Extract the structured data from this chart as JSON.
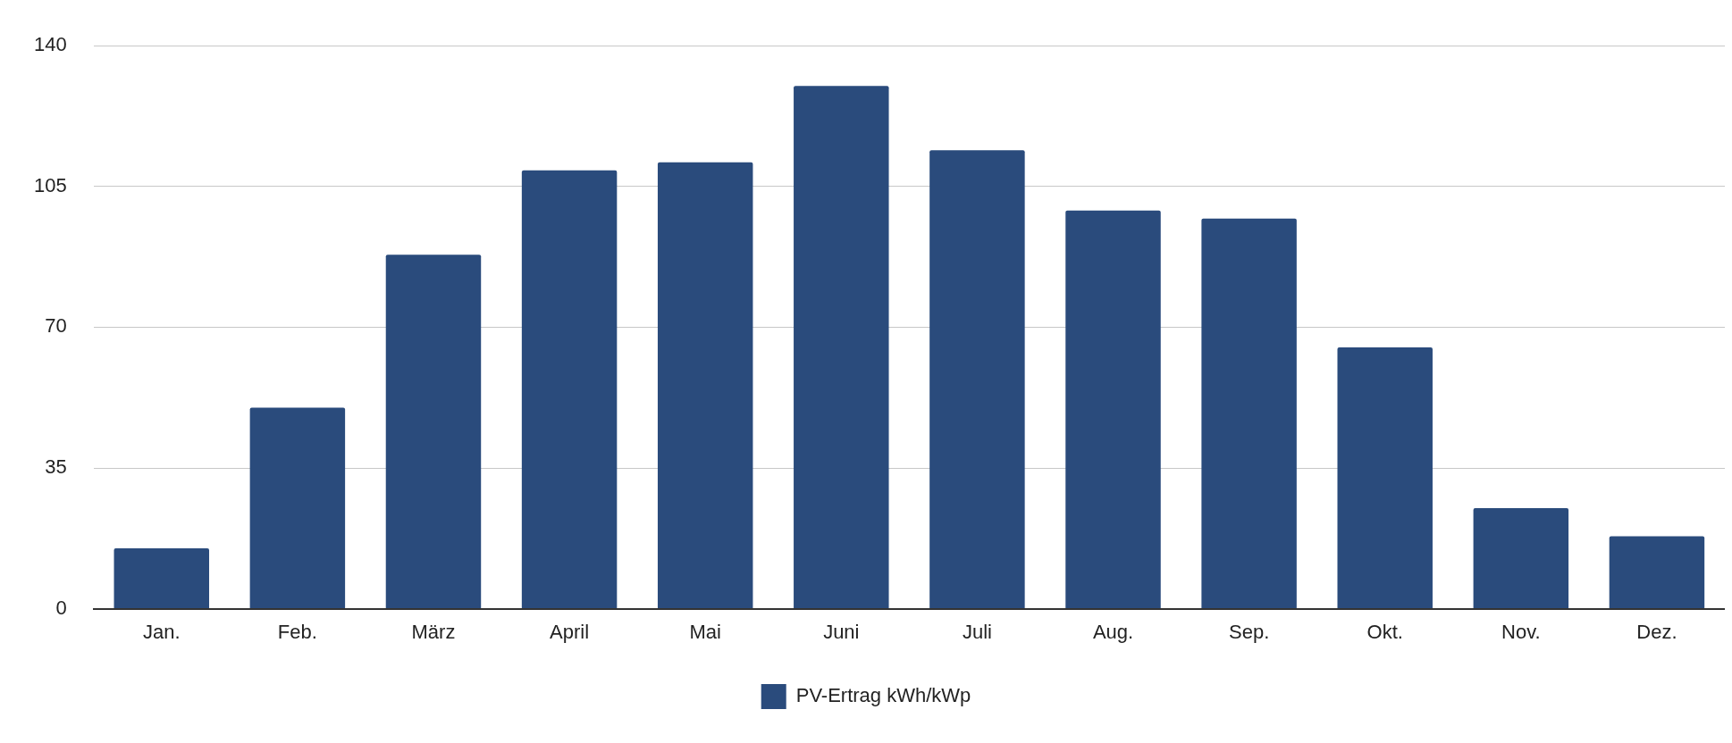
{
  "chart_data": {
    "type": "bar",
    "categories": [
      "Jan.",
      "Feb.",
      "März",
      "April",
      "Mai",
      "Juni",
      "Juli",
      "Aug.",
      "Sep.",
      "Okt.",
      "Nov.",
      "Dez."
    ],
    "series": [
      {
        "name": "PV-Ertrag kWh/kWp",
        "color": "#2a4b7c",
        "values": [
          15,
          50,
          88,
          109,
          111,
          130,
          114,
          99,
          97,
          65,
          25,
          18
        ]
      }
    ],
    "ylim": [
      0,
      140
    ],
    "yticks": [
      0,
      35,
      70,
      105,
      140
    ],
    "grid": "y",
    "legend": "bottom"
  }
}
